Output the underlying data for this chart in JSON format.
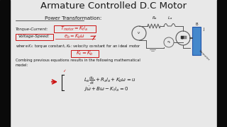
{
  "title": "Armature Controlled D.C Motor",
  "title_fontsize": 9.5,
  "bg_color": "#e8e8e8",
  "black_bar_color": "#0a0a0a",
  "text_color": "#1a1a1a",
  "red_color": "#cc1111",
  "dark_red": "#aa0000",
  "section1_label": "Power Transformation:",
  "torque_label": "Torque-Current:",
  "voltage_label": "Voltage-Speed:",
  "torque_eq": "$T_{motor} = K_t i_a$",
  "voltage_eq": "$e_b = K_b\\omega$",
  "kt_kb_eq": "$K_t = K_b$",
  "where_text": "where $K_t$: torque constant, $K_b$: velocity constant for an ideal motor",
  "combing_text1": "Combing previous equations results in the following mathematical",
  "combing_text2": "model:",
  "eq1": "$L_a\\frac{di_a}{dt} + R_a i_a + K_b\\omega = u$",
  "eq2": "$J\\dot{\\omega} + B\\omega - K_t i_a = 0$",
  "black_bar_width": 14,
  "circuit_color": "#555555"
}
